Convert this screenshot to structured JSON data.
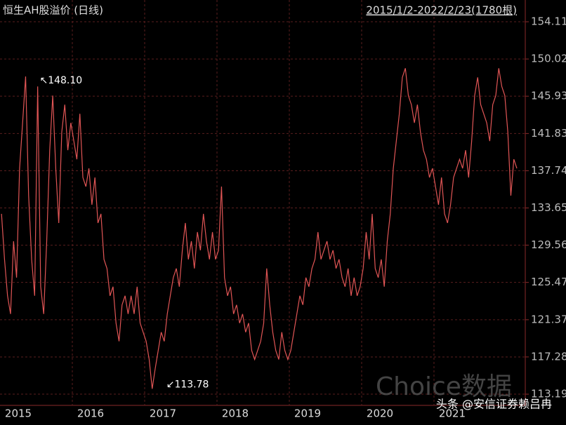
{
  "chart_data": {
    "type": "line",
    "title": "恒生AH股溢价 (日线)",
    "subtitle": "2015/1/2-2022/2/23(1780根)",
    "annotations": [
      {
        "text": "↖148.10",
        "index": 8,
        "value": 148.1
      },
      {
        "text": "↙113.78",
        "index": 50,
        "value": 113.78
      }
    ],
    "watermark": "Choice数据",
    "credit": "头条 @安信证券赖吕冉",
    "categories": [
      "2015",
      null,
      null,
      null,
      null,
      null,
      null,
      null,
      null,
      null,
      null,
      null,
      null,
      null,
      null,
      null,
      null,
      null,
      null,
      null,
      null,
      null,
      null,
      null,
      "2016",
      null,
      null,
      null,
      null,
      null,
      null,
      null,
      null,
      null,
      null,
      null,
      null,
      null,
      null,
      null,
      null,
      null,
      null,
      null,
      null,
      null,
      null,
      null,
      "2017",
      null,
      null,
      null,
      null,
      null,
      null,
      null,
      null,
      null,
      null,
      null,
      null,
      null,
      null,
      null,
      null,
      null,
      null,
      null,
      null,
      null,
      null,
      null,
      "2018",
      null,
      null,
      null,
      null,
      null,
      null,
      null,
      null,
      null,
      null,
      null,
      null,
      null,
      null,
      null,
      null,
      null,
      null,
      null,
      null,
      null,
      null,
      null,
      "2019",
      null,
      null,
      null,
      null,
      null,
      null,
      null,
      null,
      null,
      null,
      null,
      null,
      null,
      null,
      null,
      null,
      null,
      null,
      null,
      null,
      null,
      null,
      null,
      "2020",
      null,
      null,
      null,
      null,
      null,
      null,
      null,
      null,
      null,
      null,
      null,
      null,
      null,
      null,
      null,
      null,
      null,
      null,
      null,
      null,
      null,
      null,
      null,
      "2021",
      null,
      null,
      null,
      null,
      null,
      null,
      null,
      null,
      null,
      null,
      null,
      null,
      null,
      null,
      null,
      null,
      null,
      null,
      null,
      null,
      null,
      null,
      null,
      null,
      null,
      null,
      null
    ],
    "series": [
      {
        "color": "#e05555",
        "values": [
          133,
          128,
          124,
          122,
          130,
          126,
          138,
          143,
          148.1,
          135,
          128,
          124,
          147,
          125,
          122,
          130,
          140,
          146,
          138,
          132,
          142,
          145,
          140,
          143,
          141,
          139,
          144,
          137,
          136,
          138,
          134,
          137,
          132,
          133,
          128,
          127,
          124,
          125,
          121,
          119,
          123,
          124,
          122,
          124,
          122,
          125,
          121,
          120,
          119,
          117,
          113.78,
          116,
          118,
          120,
          119,
          122,
          124,
          126,
          127,
          125,
          129,
          132,
          128,
          130,
          127,
          131,
          129,
          133,
          130,
          128,
          131,
          128,
          129,
          136,
          126,
          124,
          125,
          122,
          123,
          121,
          122,
          120,
          121,
          118,
          117,
          118,
          119,
          121,
          127,
          123,
          120,
          118,
          117,
          120,
          118,
          117,
          118,
          120,
          122,
          124,
          123,
          126,
          125,
          127,
          128,
          131,
          128,
          129,
          130,
          128,
          129,
          127,
          128,
          126,
          125,
          127,
          124,
          126,
          124,
          125,
          127,
          131,
          128,
          133,
          127,
          126,
          128,
          125,
          130,
          133,
          138,
          141,
          144,
          148,
          149,
          146,
          145,
          143,
          145,
          142,
          140,
          139,
          137,
          138,
          136,
          134,
          137,
          133,
          132,
          134,
          137,
          138,
          139,
          138,
          140,
          137,
          141,
          146,
          148,
          145,
          144,
          143,
          141,
          145,
          146,
          149,
          147,
          146,
          142,
          135,
          139,
          138
        ]
      }
    ],
    "ylim": [
      112.19,
      156.27
    ],
    "yticks": [
      154.11,
      150.02,
      145.93,
      141.83,
      137.74,
      133.65,
      129.56,
      125.47,
      121.37,
      117.28,
      113.19
    ],
    "grid": true
  }
}
